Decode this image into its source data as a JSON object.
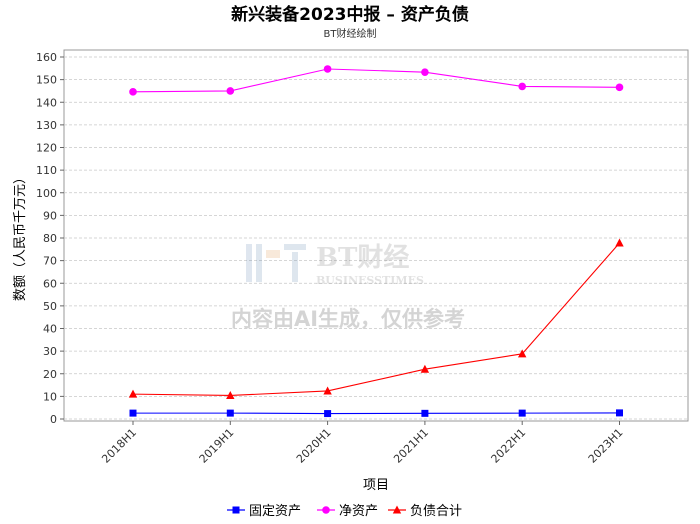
{
  "chart_data": {
    "type": "line",
    "title": "新兴装备2023中报 – 资产负债",
    "subtitle": "BT财经绘制",
    "xlabel": "项目",
    "ylabel": "数额（人民币千万元）",
    "categories": [
      "2018H1",
      "2019H1",
      "2020H1",
      "2021H1",
      "2022H1",
      "2023H1"
    ],
    "ylim": [
      0,
      160
    ],
    "ytick_step": 10,
    "grid": true,
    "legend_position": "bottom",
    "series": [
      {
        "name": "固定资产",
        "color": "#0000ff",
        "marker": "square",
        "values": [
          2.6,
          2.6,
          2.4,
          2.5,
          2.6,
          2.7
        ]
      },
      {
        "name": "净资产",
        "color": "#ff00ff",
        "marker": "circle",
        "values": [
          144.6,
          145.0,
          154.7,
          153.3,
          147.0,
          146.6
        ]
      },
      {
        "name": "负债合计",
        "color": "#ff0000",
        "marker": "triangle",
        "values": [
          11.0,
          10.4,
          12.4,
          22.0,
          28.8,
          77.8
        ]
      }
    ]
  },
  "watermark": {
    "brand": "BT财经",
    "brand_en": "BUSINESSTIMES",
    "notice": "内容由AI生成，仅供参考"
  }
}
